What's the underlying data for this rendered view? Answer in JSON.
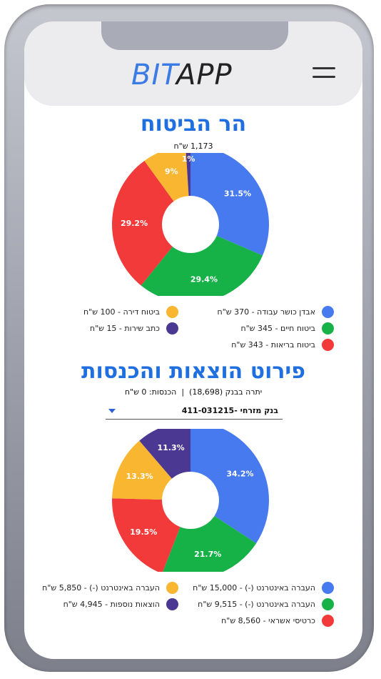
{
  "header": {
    "logo_bit": "BIT",
    "logo_app": "APP"
  },
  "insurance": {
    "title": "הר הביטוח",
    "total": "1,173 ש\"ח",
    "legend": [
      {
        "label": "אבדן כושר עבודה - 370 ש\"ח",
        "color": "#4779ef"
      },
      {
        "label": "ביטוח חיים - 345 ש\"ח",
        "color": "#16b147"
      },
      {
        "label": "ביטוח בריאות - 343 ש\"ח",
        "color": "#f23a3a"
      },
      {
        "label": "ביטוח דירה - 100 ש\"ח",
        "color": "#f9b630"
      },
      {
        "label": "כתב שירות - 15 ש\"ח",
        "color": "#4a3892"
      }
    ]
  },
  "finance": {
    "title": "פירוט הוצאות והכנסות",
    "summary": "יתרה בבנק (18,698)  |  הכנסות: 0 ש\"ח",
    "bank_select": "בנק מזרחי -411-031215",
    "legend": [
      {
        "label": "העברה באינטרנט (-) - 15,000 ש\"ח",
        "color": "#4779ef"
      },
      {
        "label": "העברה באינטרנט (-) - 9,515 ש\"ח",
        "color": "#16b147"
      },
      {
        "label": "כרטיסי אשראי - 8,560 ש\"ח",
        "color": "#f23a3a"
      },
      {
        "label": "העברה באינטרנט (-) - 5,850 ש\"ח",
        "color": "#f9b630"
      },
      {
        "label": "הוצאות נוספות - 4,945 ש\"ח",
        "color": "#4a3892"
      }
    ]
  },
  "chart_data": [
    {
      "type": "pie",
      "title": "הר הביטוח",
      "categories": [
        "אבדן כושר עבודה",
        "ביטוח חיים",
        "ביטוח בריאות",
        "ביטוח דירה",
        "כתב שירות"
      ],
      "values": [
        31.5,
        29.4,
        29.2,
        9,
        1
      ],
      "labels": [
        "31.5%",
        "29.4%",
        "29.2%",
        "9%",
        "1%"
      ],
      "colors": [
        "#4779ef",
        "#16b147",
        "#f23a3a",
        "#f9b630",
        "#4a3892"
      ]
    },
    {
      "type": "pie",
      "title": "פירוט הוצאות והכנסות",
      "categories": [
        "העברה באינטרנט (-) 15,000",
        "העברה באינטרנט (-) 9,515",
        "כרטיסי אשראי",
        "העברה באינטרנט (-) 5,850",
        "הוצאות נוספות"
      ],
      "values": [
        34.2,
        21.7,
        19.5,
        13.3,
        11.3
      ],
      "labels": [
        "34.2%",
        "21.7%",
        "19.5%",
        "13.3%",
        "11.3%"
      ],
      "colors": [
        "#4779ef",
        "#16b147",
        "#f23a3a",
        "#f9b630",
        "#4a3892"
      ]
    }
  ]
}
